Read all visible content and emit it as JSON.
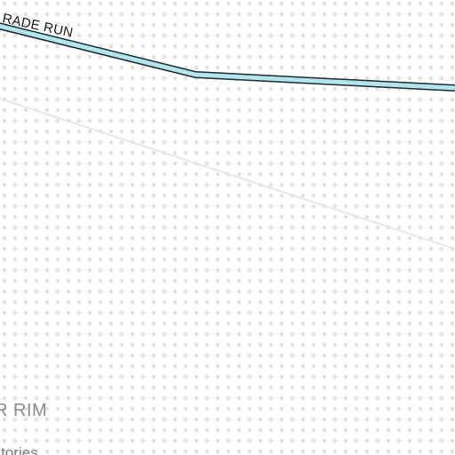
{
  "map": {
    "background_color": "#ffffff",
    "dot_color": "#e3e3d8",
    "run": {
      "name": "RADE RUN",
      "fill_color": "#b3e5ee",
      "outline_color": "#1d2a30"
    },
    "boundary": {
      "color": "#e6e6e6"
    },
    "labels": {
      "region": "R RIM",
      "subregion": "rritories"
    }
  }
}
